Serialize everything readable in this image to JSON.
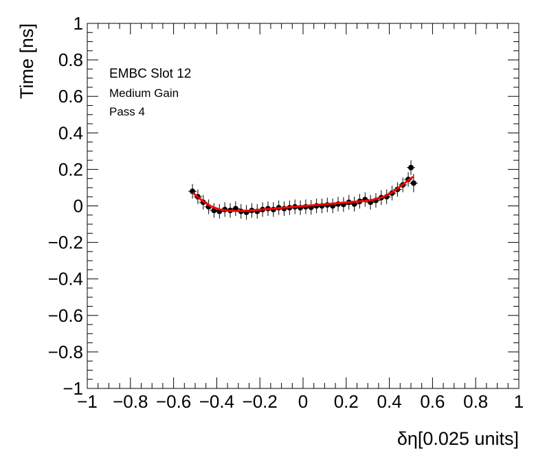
{
  "chart_data": {
    "type": "scatter",
    "xlabel": "δη[0.025 units]",
    "ylabel": "Time [ns]",
    "xlim": [
      -1,
      1
    ],
    "ylim": [
      -1,
      1
    ],
    "x_ticks": [
      "−1",
      "−0.8",
      "−0.6",
      "−0.4",
      "−0.2",
      "0",
      "0.2",
      "0.4",
      "0.6",
      "0.8",
      "1"
    ],
    "y_ticks": [
      "−1",
      "−0.8",
      "−0.6",
      "−0.4",
      "−0.2",
      "0",
      "0.2",
      "0.4",
      "0.6",
      "0.8",
      "1"
    ],
    "grid": false,
    "annotations": [
      "EMBC Slot 12",
      "Medium Gain",
      "Pass 4"
    ],
    "colors": {
      "points": "#000000",
      "fit": "#ff0000"
    },
    "series": [
      {
        "points": [
          [
            -0.5125,
            0.08,
            0.04
          ],
          [
            -0.4875,
            0.05,
            0.04
          ],
          [
            -0.4625,
            0.02,
            0.04
          ],
          [
            -0.4375,
            -0.005,
            0.04
          ],
          [
            -0.4125,
            -0.025,
            0.04
          ],
          [
            -0.3875,
            -0.03,
            0.04
          ],
          [
            -0.3625,
            -0.02,
            0.04
          ],
          [
            -0.3375,
            -0.025,
            0.04
          ],
          [
            -0.3125,
            -0.015,
            0.04
          ],
          [
            -0.2875,
            -0.03,
            0.04
          ],
          [
            -0.2625,
            -0.035,
            0.04
          ],
          [
            -0.2375,
            -0.025,
            0.04
          ],
          [
            -0.2125,
            -0.03,
            0.04
          ],
          [
            -0.1875,
            -0.02,
            0.04
          ],
          [
            -0.1625,
            -0.015,
            0.04
          ],
          [
            -0.1375,
            -0.02,
            0.04
          ],
          [
            -0.1125,
            -0.01,
            0.04
          ],
          [
            -0.0875,
            -0.015,
            0.04
          ],
          [
            -0.0625,
            -0.01,
            0.04
          ],
          [
            -0.0375,
            -0.005,
            0.04
          ],
          [
            -0.0125,
            -0.01,
            0.04
          ],
          [
            0.0125,
            -0.005,
            0.04
          ],
          [
            0.0375,
            -0.008,
            0.04
          ],
          [
            0.0625,
            0.0,
            0.04
          ],
          [
            0.0875,
            0.0,
            0.04
          ],
          [
            0.1125,
            0.005,
            0.04
          ],
          [
            0.1375,
            0.0,
            0.04
          ],
          [
            0.1625,
            0.01,
            0.04
          ],
          [
            0.1875,
            0.008,
            0.04
          ],
          [
            0.2125,
            0.02,
            0.04
          ],
          [
            0.2375,
            0.01,
            0.04
          ],
          [
            0.2625,
            0.025,
            0.04
          ],
          [
            0.2875,
            0.035,
            0.04
          ],
          [
            0.3125,
            0.02,
            0.04
          ],
          [
            0.3375,
            0.03,
            0.04
          ],
          [
            0.3625,
            0.045,
            0.04
          ],
          [
            0.3875,
            0.05,
            0.04
          ],
          [
            0.4125,
            0.07,
            0.04
          ],
          [
            0.4375,
            0.09,
            0.04
          ],
          [
            0.4625,
            0.115,
            0.04
          ],
          [
            0.4875,
            0.145,
            0.04
          ],
          [
            0.5,
            0.21,
            0.04
          ],
          [
            0.5125,
            0.125,
            0.05
          ]
        ]
      },
      {
        "type": "line",
        "x": [
          -0.51,
          -0.49,
          -0.47,
          -0.45,
          -0.43,
          -0.41,
          -0.39,
          -0.37,
          -0.35,
          -0.33,
          -0.31,
          -0.29,
          -0.27,
          -0.25,
          -0.23,
          -0.21,
          -0.19,
          -0.17,
          -0.15,
          -0.13,
          -0.11,
          -0.09,
          -0.07,
          -0.05,
          -0.03,
          -0.01,
          0.01,
          0.03,
          0.05,
          0.07,
          0.09,
          0.11,
          0.13,
          0.15,
          0.17,
          0.19,
          0.21,
          0.23,
          0.25,
          0.27,
          0.29,
          0.31,
          0.33,
          0.35,
          0.37,
          0.39,
          0.41,
          0.43,
          0.45,
          0.47,
          0.49,
          0.51
        ],
        "y": [
          0.072,
          0.05,
          0.032,
          0.015,
          0.0,
          -0.01,
          -0.018,
          -0.023,
          -0.026,
          -0.027,
          -0.028,
          -0.028,
          -0.027,
          -0.026,
          -0.024,
          -0.022,
          -0.02,
          -0.018,
          -0.016,
          -0.014,
          -0.012,
          -0.01,
          -0.008,
          -0.006,
          -0.004,
          -0.002,
          0.0,
          0.002,
          0.004,
          0.006,
          0.008,
          0.01,
          0.012,
          0.014,
          0.016,
          0.018,
          0.02,
          0.022,
          0.024,
          0.026,
          0.028,
          0.031,
          0.035,
          0.041,
          0.049,
          0.059,
          0.072,
          0.088,
          0.106,
          0.124,
          0.142,
          0.16
        ]
      }
    ]
  }
}
